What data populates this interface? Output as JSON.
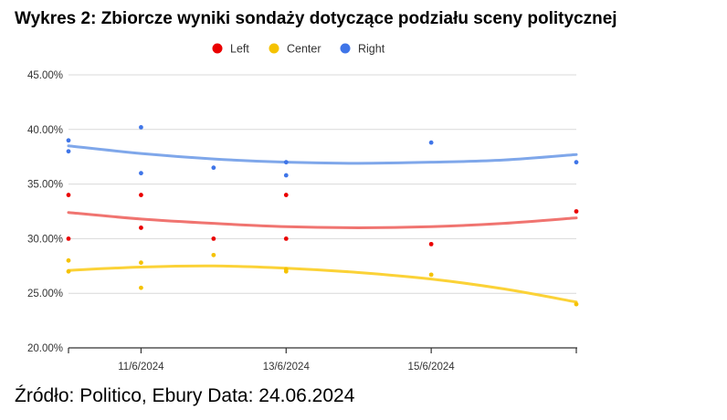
{
  "title": "Wykres 2: Zbiorcze wyniki sondaży dotyczące podziału sceny politycznej",
  "source": "Źródło: Politico, Ebury Data: 24.06.2024",
  "chart_data": {
    "type": "scatter",
    "x_axis": {
      "range": [
        "2024-06-10",
        "2024-06-17"
      ],
      "tick_labels": [
        {
          "date": "2024-06-11",
          "label": "11/6/2024"
        },
        {
          "date": "2024-06-13",
          "label": "13/6/2024"
        },
        {
          "date": "2024-06-15",
          "label": "15/6/2024"
        }
      ],
      "extra_ticks": [
        "2024-06-10",
        "2024-06-17"
      ]
    },
    "y_axis": {
      "range": [
        20,
        45
      ],
      "tick_values": [
        20,
        25,
        30,
        35,
        40,
        45
      ],
      "tick_labels": [
        "20.00%",
        "25.00%",
        "30.00%",
        "35.00%",
        "40.00%",
        "45.00%"
      ]
    },
    "grid": true,
    "legend_position": "top",
    "series": [
      {
        "name": "Left",
        "color": "#ea0000",
        "trend_color": "#f07470",
        "points": [
          {
            "x": "2024-06-10",
            "y": 34.0
          },
          {
            "x": "2024-06-10",
            "y": 30.0
          },
          {
            "x": "2024-06-11",
            "y": 34.0
          },
          {
            "x": "2024-06-11",
            "y": 31.0
          },
          {
            "x": "2024-06-12",
            "y": 30.0
          },
          {
            "x": "2024-06-13",
            "y": 34.0
          },
          {
            "x": "2024-06-13",
            "y": 30.0
          },
          {
            "x": "2024-06-15",
            "y": 29.5
          },
          {
            "x": "2024-06-17",
            "y": 32.5
          }
        ],
        "trendline": [
          32.4,
          31.8,
          31.4,
          31.1,
          31.0,
          31.1,
          31.4,
          31.9
        ]
      },
      {
        "name": "Center",
        "color": "#f5c200",
        "trend_color": "#fbd237",
        "points": [
          {
            "x": "2024-06-10",
            "y": 28.0
          },
          {
            "x": "2024-06-10",
            "y": 27.0
          },
          {
            "x": "2024-06-11",
            "y": 27.8
          },
          {
            "x": "2024-06-11",
            "y": 25.5
          },
          {
            "x": "2024-06-12",
            "y": 28.5
          },
          {
            "x": "2024-06-13",
            "y": 27.2
          },
          {
            "x": "2024-06-13",
            "y": 27.0
          },
          {
            "x": "2024-06-15",
            "y": 26.7
          },
          {
            "x": "2024-06-17",
            "y": 24.0
          }
        ],
        "trendline": [
          27.1,
          27.4,
          27.5,
          27.3,
          26.9,
          26.3,
          25.4,
          24.2
        ]
      },
      {
        "name": "Right",
        "color": "#3f75e8",
        "trend_color": "#7fa7ea",
        "points": [
          {
            "x": "2024-06-10",
            "y": 39.0
          },
          {
            "x": "2024-06-10",
            "y": 38.0
          },
          {
            "x": "2024-06-11",
            "y": 40.2
          },
          {
            "x": "2024-06-11",
            "y": 36.0
          },
          {
            "x": "2024-06-12",
            "y": 36.5
          },
          {
            "x": "2024-06-13",
            "y": 37.0
          },
          {
            "x": "2024-06-13",
            "y": 35.8
          },
          {
            "x": "2024-06-15",
            "y": 38.8
          },
          {
            "x": "2024-06-17",
            "y": 37.0
          }
        ],
        "trendline": [
          38.5,
          37.8,
          37.3,
          37.0,
          36.9,
          37.0,
          37.2,
          37.7
        ]
      }
    ]
  }
}
